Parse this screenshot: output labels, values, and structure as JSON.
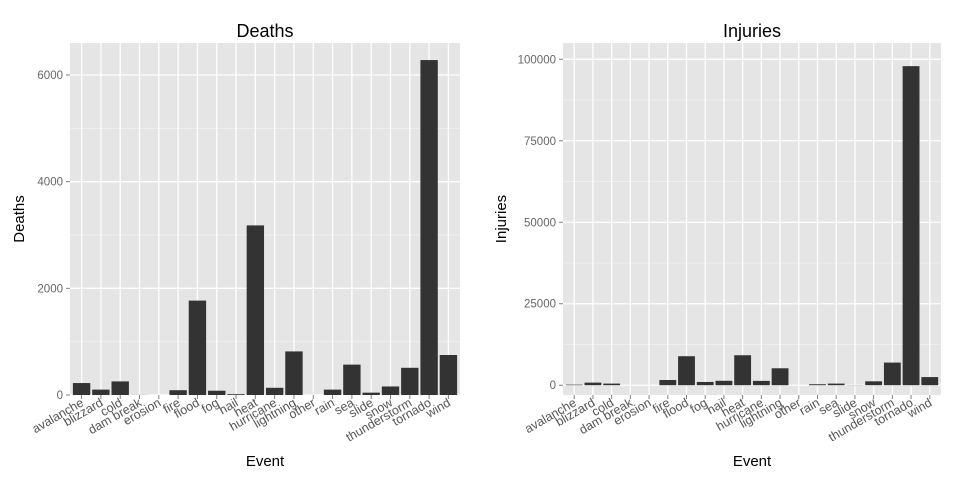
{
  "chart_data": [
    {
      "type": "bar",
      "title": "Deaths",
      "xlabel": "Event",
      "ylabel": "Deaths",
      "categories": [
        "avalanche",
        "blizzard",
        "cold",
        "dam break",
        "erosion",
        "fire",
        "flood",
        "fog",
        "hail",
        "heat",
        "hurricane",
        "lightning",
        "other",
        "rain",
        "sea",
        "slide",
        "snow",
        "thunderstorm",
        "tornado",
        "wind"
      ],
      "values": [
        224,
        101,
        255,
        2,
        0,
        90,
        1770,
        80,
        15,
        3180,
        135,
        817,
        0,
        101,
        570,
        44,
        160,
        510,
        6280,
        750
      ],
      "ylim": [
        0,
        6600
      ],
      "yticks": [
        0,
        2000,
        4000,
        6000
      ],
      "ytick_labels": [
        "0",
        "2000",
        "4000",
        "6000"
      ],
      "grid": true,
      "legend": "none"
    },
    {
      "type": "bar",
      "title": "Injuries",
      "xlabel": "Event",
      "ylabel": "Injuries",
      "categories": [
        "avalanche",
        "blizzard",
        "cold",
        "dam break",
        "erosion",
        "fire",
        "flood",
        "fog",
        "hail",
        "heat",
        "hurricane",
        "lightning",
        "other",
        "rain",
        "sea",
        "slide",
        "snow",
        "thunderstorm",
        "tornado",
        "wind"
      ],
      "values": [
        170,
        800,
        500,
        0,
        0,
        1600,
        8900,
        1000,
        1360,
        9200,
        1330,
        5200,
        0,
        300,
        500,
        50,
        1200,
        6950,
        97900,
        2500
      ],
      "ylim": [
        -3000,
        105000
      ],
      "yticks": [
        0,
        25000,
        50000,
        75000,
        100000
      ],
      "ytick_labels": [
        "0",
        "25000",
        "50000",
        "75000",
        "100000"
      ],
      "grid": true,
      "legend": "none"
    }
  ],
  "colors": {
    "panel_background": "#e5e5e5",
    "grid_major": "#ffffff",
    "grid_minor": "#f2f2f2",
    "bar_fill": "#333333",
    "tick_mark": "#7f7f7f"
  }
}
